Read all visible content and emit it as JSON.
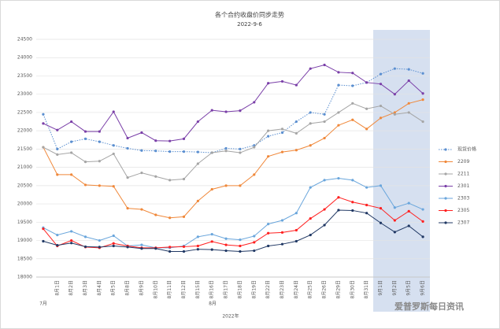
{
  "chart_data": {
    "type": "line",
    "title": "各个合约收盘价同步走势",
    "subtitle": "2022-9-6",
    "categories": [
      null,
      "8月1日",
      "8月2日",
      "8月3日",
      "8月4日",
      "8月5日",
      "8月8日",
      "8月9日",
      "8月10日",
      "8月11日",
      "8月12日",
      "8月15日",
      "8月16日",
      "8月17日",
      "8月18日",
      "8月19日",
      "8月22日",
      "8月23日",
      "8月24日",
      "8月25日",
      "8月26日",
      "8月29日",
      "8月30日",
      "8月31日",
      "9月1日",
      "9月2日",
      "9月5日",
      "9月6日"
    ],
    "x_groups": [
      "7月",
      "8月"
    ],
    "x_axis_label": "2022年",
    "ylim": [
      18000,
      24500
    ],
    "yticks": [
      18000,
      18500,
      19000,
      19500,
      20000,
      20500,
      21000,
      21500,
      22000,
      22500,
      23000,
      23500,
      24000,
      24500
    ],
    "grid": true,
    "legend": "right",
    "series": [
      {
        "name": "现货价格",
        "color": "#5b8fd0",
        "dashed": true,
        "values": [
          22450,
          21500,
          21700,
          21780,
          21700,
          21600,
          21520,
          21460,
          21450,
          21430,
          21430,
          21420,
          21400,
          21520,
          21500,
          21600,
          21850,
          21950,
          22250,
          22500,
          22450,
          23250,
          23230,
          23320,
          23550,
          23700,
          23680,
          23570
        ]
      },
      {
        "name": "2209",
        "color": "#f0883a",
        "values": [
          21550,
          20800,
          20800,
          20520,
          20500,
          20480,
          19880,
          19850,
          19700,
          19620,
          19650,
          20080,
          20400,
          20500,
          20500,
          20800,
          21300,
          21420,
          21470,
          21600,
          21800,
          22150,
          22300,
          22050,
          22350,
          22500,
          22750,
          22850
        ]
      },
      {
        "name": "2211",
        "color": "#a5a5a5",
        "values": [
          21550,
          21350,
          21400,
          21150,
          21170,
          21370,
          20720,
          20850,
          20750,
          20650,
          20680,
          21100,
          21400,
          21450,
          21400,
          21550,
          22000,
          22050,
          21930,
          22200,
          22250,
          22500,
          22750,
          22600,
          22680,
          22450,
          22500,
          22250
        ]
      },
      {
        "name": "2301",
        "color": "#7a3fa8",
        "values": [
          22200,
          22020,
          22250,
          21980,
          21980,
          22520,
          21800,
          21950,
          21730,
          21720,
          21780,
          22250,
          22560,
          22520,
          22550,
          22780,
          23300,
          23350,
          23250,
          23700,
          23800,
          23600,
          23580,
          23320,
          23280,
          23000,
          23370,
          23020
        ]
      },
      {
        "name": "2303",
        "color": "#6aa6dc",
        "values": [
          19350,
          19150,
          19250,
          19100,
          19000,
          19130,
          18850,
          18880,
          18800,
          18800,
          18850,
          19100,
          19170,
          19050,
          19020,
          19120,
          19450,
          19550,
          19750,
          20450,
          20650,
          20700,
          20650,
          20450,
          20500,
          19900,
          20020,
          19850
        ]
      },
      {
        "name": "2305",
        "color": "#ff2020",
        "values": [
          19320,
          18850,
          19000,
          18820,
          18800,
          18920,
          18850,
          18800,
          18800,
          18820,
          18830,
          18850,
          18970,
          18880,
          18850,
          18950,
          19200,
          19220,
          19280,
          19600,
          19850,
          20180,
          20050,
          19970,
          19880,
          19550,
          19800,
          19520
        ]
      },
      {
        "name": "2307",
        "color": "#203864",
        "values": [
          18980,
          18870,
          18930,
          18830,
          18820,
          18850,
          18820,
          18780,
          18780,
          18700,
          18700,
          18760,
          18750,
          18720,
          18700,
          18720,
          18850,
          18900,
          18980,
          19150,
          19420,
          19830,
          19820,
          19750,
          19480,
          19230,
          19400,
          19100
        ]
      }
    ],
    "watermark": "爱普罗斯每日资讯"
  }
}
